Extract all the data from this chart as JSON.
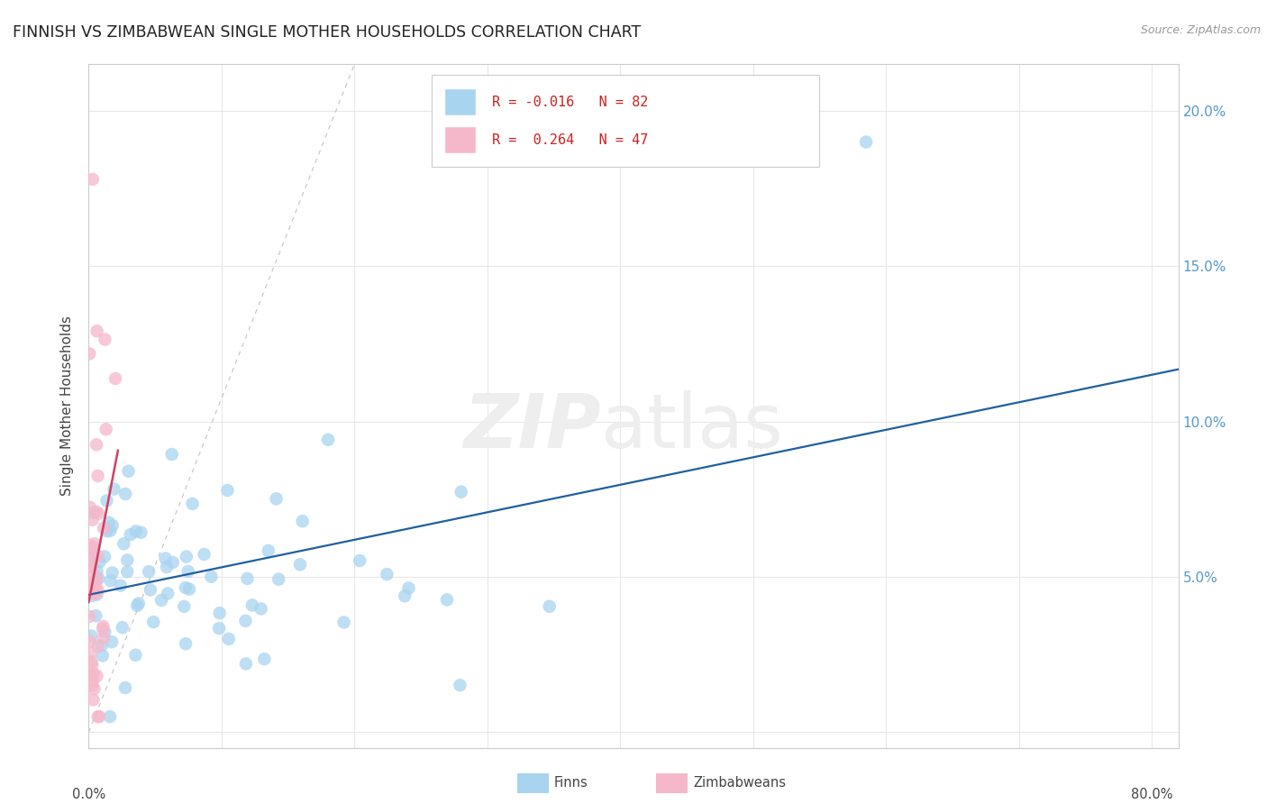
{
  "title": "FINNISH VS ZIMBABWEAN SINGLE MOTHER HOUSEHOLDS CORRELATION CHART",
  "source": "Source: ZipAtlas.com",
  "ylabel": "Single Mother Households",
  "finns_color": "#a8d4f0",
  "zimbabweans_color": "#f5b8cb",
  "finn_trendline_color": "#2060a0",
  "zimbabwe_trendline_color": "#d04060",
  "xlim": [
    0.0,
    0.82
  ],
  "ylim": [
    -0.005,
    0.215
  ],
  "yticks": [
    0.0,
    0.05,
    0.1,
    0.15,
    0.2
  ],
  "ytick_labels_right": [
    "",
    "5.0%",
    "10.0%",
    "15.0%",
    "20.0%"
  ],
  "xticks": [
    0.0,
    0.1,
    0.2,
    0.3,
    0.4,
    0.5,
    0.6,
    0.7,
    0.8
  ],
  "background_color": "#ffffff",
  "grid_color": "#e8e8e8",
  "title_fontsize": 12.5,
  "tick_color": "#5599cc",
  "legend_R_N_color": "#cc2222",
  "watermark_color": "#eeeeee",
  "finn_N": 82,
  "zim_N": 47,
  "finn_R": -0.016,
  "zim_R": 0.264
}
